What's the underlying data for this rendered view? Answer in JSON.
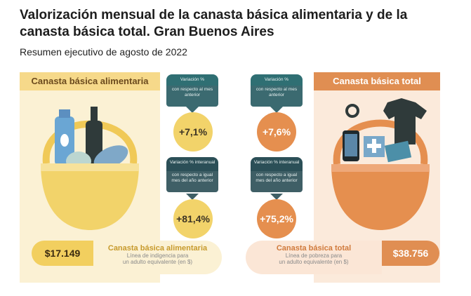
{
  "header": {
    "title": "Valorización mensual de la canasta básica alimentaria y de la canasta básica total. Gran Buenos Aires",
    "subtitle": "Resumen ejecutivo de agosto de 2022"
  },
  "left": {
    "header": "Canasta básica alimentaria",
    "monthly": {
      "tag_top": "Variación %",
      "tag_bottom": "con respecto al mes anterior",
      "value": "+7,1%"
    },
    "yearly": {
      "tag_top": "Variación % interanual",
      "tag_bottom": "con respecto a igual mes del año anterior",
      "value": "+81,4%"
    },
    "price": "$17.149",
    "pill_title": "Canasta básica alimentaria",
    "pill_line1": "Línea de indigencia para",
    "pill_line2": "un adulto equivalente (en $)"
  },
  "right": {
    "header": "Canasta básica total",
    "monthly": {
      "tag_top": "Variación %",
      "tag_bottom": "con respecto al mes anterior",
      "value": "+7,6%"
    },
    "yearly": {
      "tag_top": "Variación % interanual",
      "tag_bottom": "con respecto a igual mes del año anterior",
      "value": "+75,2%"
    },
    "price": "$38.756",
    "pill_title": "Canasta básica total",
    "pill_line1": "Línea de pobreza para",
    "pill_line2": "un adulto equivalente (en $)"
  },
  "colors": {
    "yellow": "#f2d36a",
    "orange": "#e58f4f",
    "teal": "#2f6f73"
  },
  "icons": [
    "basket-food-icon",
    "basket-total-icon"
  ]
}
